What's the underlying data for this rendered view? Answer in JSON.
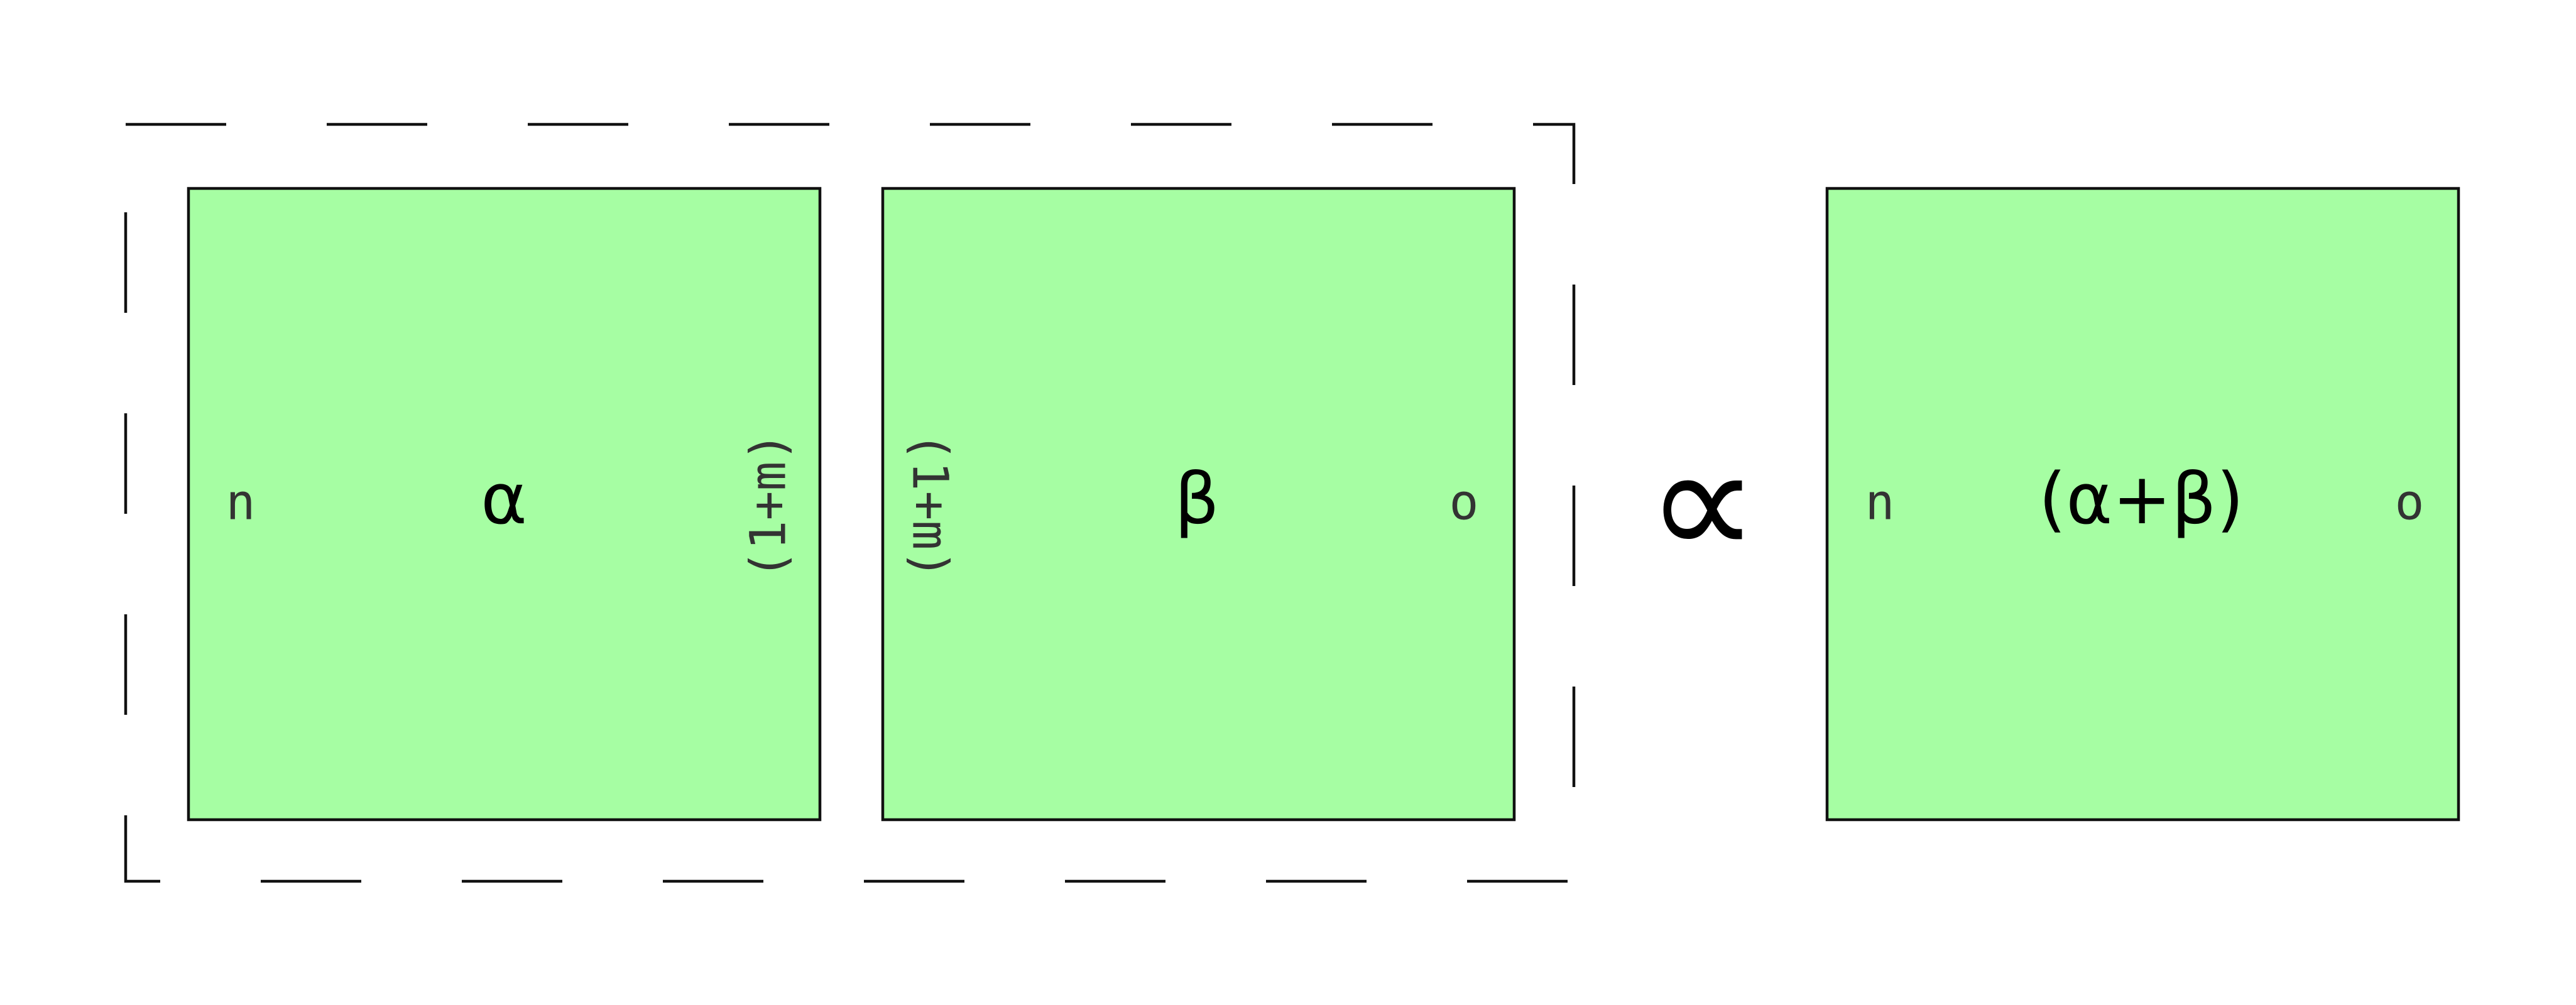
{
  "diagram": {
    "left_group": {
      "tensors": [
        {
          "label": "α",
          "left_index": "n",
          "right_index": "(1+m)"
        },
        {
          "label": "β",
          "left_index": "(1+m)",
          "right_index": "o"
        }
      ]
    },
    "relation": "∝",
    "result": {
      "label": "(α+β)",
      "left_index": "n",
      "right_index": "o"
    }
  },
  "colors": {
    "box_fill": "#a6fea3",
    "stroke": "#111111",
    "text": "#000000",
    "index_text": "#333333"
  }
}
